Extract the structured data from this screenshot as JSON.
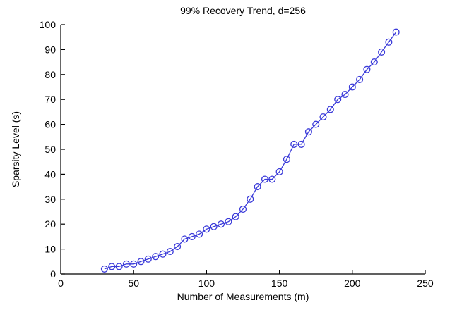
{
  "figure": {
    "background": "#ffffff"
  },
  "chart_data": {
    "type": "line",
    "title": "99% Recovery Trend, d=256",
    "xlabel": "Number of Measurements (m)",
    "ylabel": "Sparsity Level (s)",
    "xlim": [
      0,
      250
    ],
    "ylim": [
      0,
      100
    ],
    "xticks": [
      0,
      50,
      100,
      150,
      200,
      250
    ],
    "yticks": [
      0,
      10,
      20,
      30,
      40,
      50,
      60,
      70,
      80,
      90,
      100
    ],
    "grid": false,
    "legend": null,
    "marker": "circle-open",
    "line_color": "#3a3ad9",
    "axis_color": "#000000",
    "text_color": "#000000",
    "x": [
      30,
      35,
      40,
      45,
      50,
      55,
      60,
      65,
      70,
      75,
      80,
      85,
      90,
      95,
      100,
      105,
      110,
      115,
      120,
      125,
      130,
      135,
      140,
      145,
      150,
      155,
      160,
      165,
      170,
      175,
      180,
      185,
      190,
      195,
      200,
      205,
      210,
      215,
      220,
      225,
      230
    ],
    "y": [
      2,
      3,
      3,
      4,
      4,
      5,
      6,
      7,
      8,
      9,
      11,
      14,
      15,
      16,
      18,
      19,
      20,
      21,
      23,
      26,
      30,
      35,
      38,
      38,
      41,
      46,
      52,
      52,
      57,
      60,
      63,
      66,
      70,
      72,
      75,
      78,
      82,
      85,
      89,
      93,
      97
    ]
  }
}
